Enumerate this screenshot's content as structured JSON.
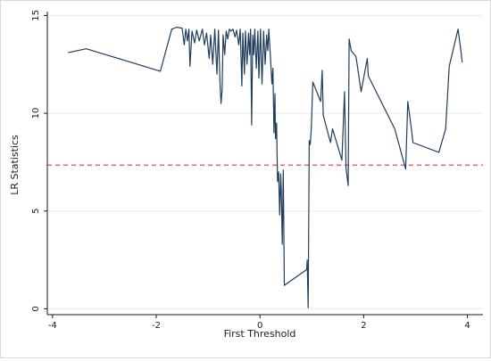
{
  "chart_data": {
    "type": "line",
    "xlabel": "First Threshold",
    "ylabel": "LR Statistics",
    "xlim": [
      -4.1,
      4.3
    ],
    "ylim": [
      -0.3,
      15.2
    ],
    "x_ticks": [
      -4,
      -2,
      0,
      2,
      4
    ],
    "y_ticks": [
      0,
      5,
      10,
      15
    ],
    "grid": "horizontal",
    "reference_line": {
      "y": 7.35,
      "style": "dashed",
      "color": "#e8304a"
    },
    "series": [
      {
        "color": "#1f3d5c",
        "points": [
          [
            -3.7,
            13.1
          ],
          [
            -3.35,
            13.3
          ],
          [
            -1.92,
            12.15
          ],
          [
            -1.7,
            14.3
          ],
          [
            -1.6,
            14.4
          ],
          [
            -1.5,
            14.35
          ],
          [
            -1.46,
            13.5
          ],
          [
            -1.43,
            14.3
          ],
          [
            -1.4,
            13.7
          ],
          [
            -1.37,
            14.3
          ],
          [
            -1.35,
            12.4
          ],
          [
            -1.31,
            14.2
          ],
          [
            -1.26,
            13.6
          ],
          [
            -1.22,
            14.25
          ],
          [
            -1.17,
            13.7
          ],
          [
            -1.11,
            14.3
          ],
          [
            -1.07,
            13.5
          ],
          [
            -1.03,
            14.1
          ],
          [
            -0.98,
            12.8
          ],
          [
            -0.95,
            14.0
          ],
          [
            -0.91,
            12.5
          ],
          [
            -0.87,
            14.3
          ],
          [
            -0.83,
            12.0
          ],
          [
            -0.8,
            14.25
          ],
          [
            -0.77,
            11.5
          ],
          [
            -0.75,
            10.5
          ],
          [
            -0.73,
            11.2
          ],
          [
            -0.71,
            14.0
          ],
          [
            -0.68,
            13.0
          ],
          [
            -0.65,
            14.2
          ],
          [
            -0.62,
            13.8
          ],
          [
            -0.59,
            14.3
          ],
          [
            -0.56,
            14.2
          ],
          [
            -0.52,
            14.3
          ],
          [
            -0.48,
            13.9
          ],
          [
            -0.45,
            14.25
          ],
          [
            -0.41,
            13.5
          ],
          [
            -0.38,
            14.3
          ],
          [
            -0.35,
            11.4
          ],
          [
            -0.33,
            14.1
          ],
          [
            -0.3,
            12.0
          ],
          [
            -0.28,
            14.2
          ],
          [
            -0.25,
            12.5
          ],
          [
            -0.22,
            14.1
          ],
          [
            -0.2,
            13.0
          ],
          [
            -0.18,
            14.3
          ],
          [
            -0.16,
            9.4
          ],
          [
            -0.14,
            14.0
          ],
          [
            -0.12,
            13.0
          ],
          [
            -0.1,
            14.3
          ],
          [
            -0.07,
            12.3
          ],
          [
            -0.04,
            14.2
          ],
          [
            -0.02,
            11.8
          ],
          [
            0.01,
            14.3
          ],
          [
            0.04,
            11.5
          ],
          [
            0.07,
            14.2
          ],
          [
            0.1,
            12.5
          ],
          [
            0.13,
            14.0
          ],
          [
            0.15,
            13.2
          ],
          [
            0.17,
            14.3
          ],
          [
            0.2,
            13.0
          ],
          [
            0.23,
            11.5
          ],
          [
            0.25,
            12.3
          ],
          [
            0.27,
            9.0
          ],
          [
            0.29,
            11.0
          ],
          [
            0.3,
            8.7
          ],
          [
            0.32,
            9.5
          ],
          [
            0.34,
            6.5
          ],
          [
            0.36,
            7.0
          ],
          [
            0.38,
            4.8
          ],
          [
            0.4,
            6.9
          ],
          [
            0.41,
            6.2
          ],
          [
            0.43,
            3.3
          ],
          [
            0.45,
            7.1
          ],
          [
            0.47,
            1.2
          ],
          [
            0.9,
            2.0
          ],
          [
            0.91,
            2.5
          ],
          [
            0.93,
            0.05
          ],
          [
            0.95,
            8.6
          ],
          [
            0.97,
            8.4
          ],
          [
            0.99,
            9.2
          ],
          [
            1.02,
            11.6
          ],
          [
            1.17,
            10.6
          ],
          [
            1.2,
            12.2
          ],
          [
            1.22,
            9.9
          ],
          [
            1.36,
            8.5
          ],
          [
            1.4,
            9.2
          ],
          [
            1.58,
            7.6
          ],
          [
            1.63,
            11.1
          ],
          [
            1.66,
            7.2
          ],
          [
            1.7,
            6.3
          ],
          [
            1.72,
            13.8
          ],
          [
            1.76,
            13.2
          ],
          [
            1.85,
            12.9
          ],
          [
            1.88,
            12.4
          ],
          [
            1.95,
            11.1
          ],
          [
            2.07,
            12.8
          ],
          [
            2.09,
            11.9
          ],
          [
            2.6,
            9.2
          ],
          [
            2.81,
            7.15
          ],
          [
            2.85,
            10.6
          ],
          [
            2.92,
            9.2
          ],
          [
            2.95,
            8.5
          ],
          [
            3.45,
            8.0
          ],
          [
            3.58,
            9.2
          ],
          [
            3.65,
            12.4
          ],
          [
            3.82,
            14.3
          ],
          [
            3.87,
            13.3
          ],
          [
            3.9,
            12.6
          ]
        ]
      }
    ]
  }
}
